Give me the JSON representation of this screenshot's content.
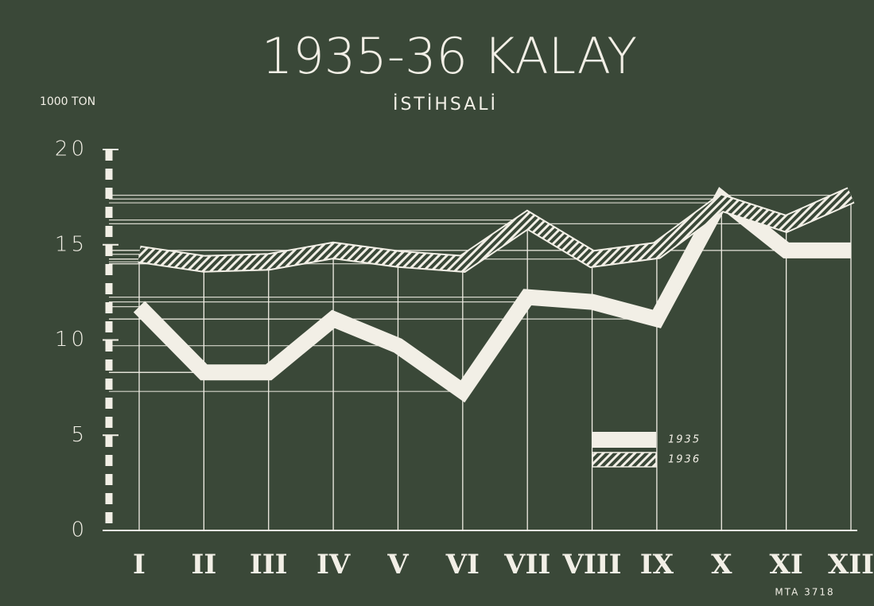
{
  "chart_data": {
    "type": "line",
    "title": "1935-36 KALAY",
    "subtitle": "İSTİHSALİ",
    "y_label": "1000 TON",
    "footer": "MTA 3718",
    "categories": [
      "I",
      "II",
      "III",
      "IV",
      "V",
      "VI",
      "VII",
      "VIII",
      "IX",
      "X",
      "XI",
      "XII"
    ],
    "series": [
      {
        "name": "1935",
        "color": "#f2efe6",
        "style": "solid",
        "values": [
          11.75,
          8.3,
          8.3,
          11.1,
          9.7,
          7.3,
          12.25,
          12.0,
          11.1,
          17.4,
          14.7,
          14.7
        ]
      },
      {
        "name": "1936",
        "color": "#f2efe6",
        "style": "hatched",
        "values": [
          14.5,
          14.0,
          14.1,
          14.7,
          14.25,
          14.0,
          16.3,
          14.25,
          14.7,
          17.2,
          16.1,
          17.6
        ]
      }
    ],
    "ylim": [
      0,
      20
    ],
    "yticks": [
      0,
      5,
      10,
      15,
      20
    ],
    "grid": true
  }
}
